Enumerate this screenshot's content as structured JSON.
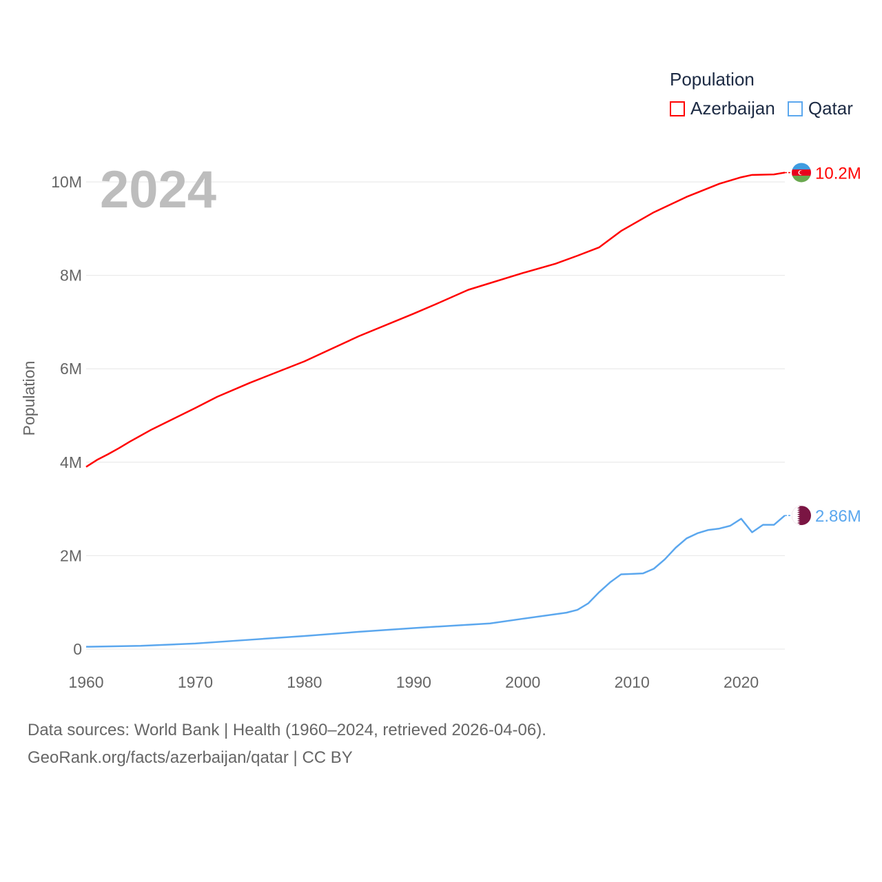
{
  "chart_data": {
    "type": "line",
    "title": "Population",
    "year_label": "2024",
    "ylabel": "Population",
    "xlabel": "",
    "xlim": [
      1960,
      2024
    ],
    "ylim": [
      0,
      10000000
    ],
    "x_ticks": [
      "1960",
      "1970",
      "1980",
      "1990",
      "2000",
      "2010",
      "2020"
    ],
    "y_ticks": [
      {
        "v": 0,
        "label": "0"
      },
      {
        "v": 2000000,
        "label": "2M"
      },
      {
        "v": 4000000,
        "label": "4M"
      },
      {
        "v": 6000000,
        "label": "6M"
      },
      {
        "v": 8000000,
        "label": "8M"
      },
      {
        "v": 10000000,
        "label": "10M"
      }
    ],
    "grid": true,
    "legend_title": "Population",
    "legend_position": "top-right",
    "series": [
      {
        "name": "Azerbaijan",
        "color": "#ff0000",
        "end_label": "10.2M",
        "flag": "azerbaijan",
        "x": [
          1960,
          1961,
          1962,
          1963,
          1964,
          1966,
          1968,
          1970,
          1972,
          1975,
          1980,
          1985,
          1990,
          1992,
          1995,
          2000,
          2003,
          2005,
          2007,
          2009,
          2012,
          2015,
          2018,
          2020,
          2021,
          2023,
          2024
        ],
        "y": [
          3.9,
          4.05,
          4.17,
          4.3,
          4.44,
          4.7,
          4.93,
          5.16,
          5.4,
          5.7,
          6.16,
          6.7,
          7.18,
          7.38,
          7.69,
          8.05,
          8.25,
          8.42,
          8.6,
          8.95,
          9.35,
          9.68,
          9.96,
          10.1,
          10.15,
          10.16,
          10.2
        ]
      },
      {
        "name": "Qatar",
        "color": "#5ba7ee",
        "end_label": "2.86M",
        "flag": "qatar",
        "x": [
          1960,
          1965,
          1970,
          1975,
          1980,
          1985,
          1990,
          1997,
          2000,
          2004,
          2005,
          2006,
          2007,
          2008,
          2009,
          2010,
          2011,
          2012,
          2013,
          2014,
          2015,
          2016,
          2017,
          2018,
          2019,
          2020,
          2021,
          2022,
          2023,
          2024
        ],
        "y": [
          0.05,
          0.07,
          0.12,
          0.2,
          0.28,
          0.37,
          0.45,
          0.55,
          0.65,
          0.78,
          0.84,
          0.98,
          1.22,
          1.43,
          1.6,
          1.61,
          1.62,
          1.72,
          1.92,
          2.17,
          2.37,
          2.48,
          2.55,
          2.58,
          2.64,
          2.79,
          2.5,
          2.66,
          2.66,
          2.86
        ]
      }
    ]
  },
  "footer": {
    "line1": "Data sources: World Bank | Health (1960–2024, retrieved 2026-04-06).",
    "line2": "GeoRank.org/facts/azerbaijan/qatar | CC BY"
  }
}
